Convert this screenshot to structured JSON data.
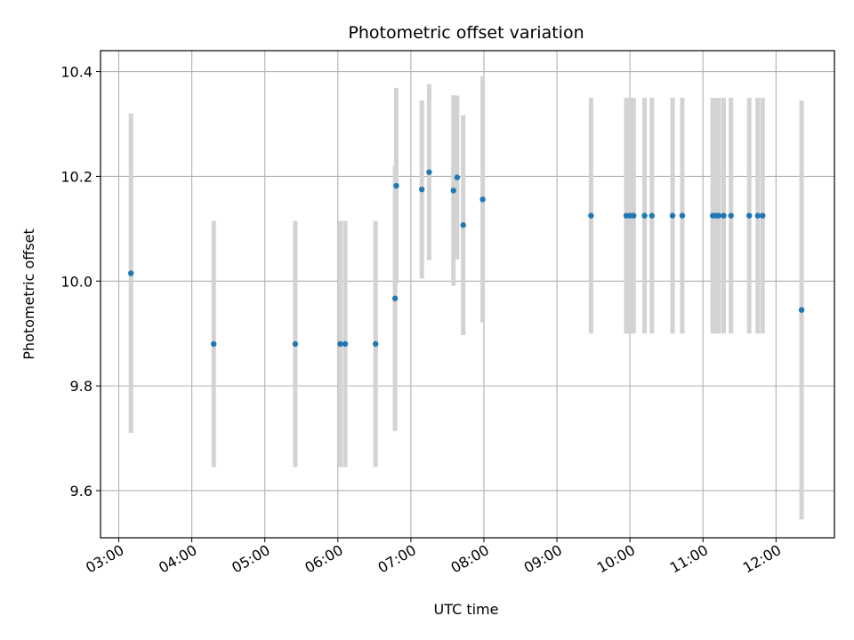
{
  "chart_data": {
    "type": "scatter",
    "title": "Photometric offset variation",
    "xlabel": "UTC time",
    "ylabel": "Photometric offset",
    "x_ticks": [
      "03:00",
      "04:00",
      "05:00",
      "06:00",
      "07:00",
      "08:00",
      "09:00",
      "10:00",
      "11:00",
      "12:00"
    ],
    "y_ticks": [
      "9.6",
      "9.8",
      "10.0",
      "10.2",
      "10.4"
    ],
    "xlim": [
      "02:45",
      "12:48"
    ],
    "ylim": [
      9.51,
      10.44
    ],
    "grid": true,
    "colors": {
      "point": "#1f77b4",
      "errorbar": "#d3d3d3",
      "grid": "#b0b0b0"
    },
    "series": [
      {
        "points": [
          {
            "x": "03:10",
            "y": 10.015,
            "err": 0.305
          },
          {
            "x": "04:18",
            "y": 9.88,
            "err": 0.235
          },
          {
            "x": "05:25",
            "y": 9.88,
            "err": 0.235
          },
          {
            "x": "06:02",
            "y": 9.88,
            "err": 0.235
          },
          {
            "x": "06:06",
            "y": 9.88,
            "err": 0.235
          },
          {
            "x": "06:31",
            "y": 9.88,
            "err": 0.235
          },
          {
            "x": "06:47",
            "y": 9.967,
            "err": 0.253
          },
          {
            "x": "06:48",
            "y": 10.182,
            "err": 0.187
          },
          {
            "x": "07:09",
            "y": 10.175,
            "err": 0.17
          },
          {
            "x": "07:15",
            "y": 10.208,
            "err": 0.168
          },
          {
            "x": "07:35",
            "y": 10.173,
            "err": 0.182
          },
          {
            "x": "07:38",
            "y": 10.198,
            "err": 0.156
          },
          {
            "x": "07:43",
            "y": 10.107,
            "err": 0.21
          },
          {
            "x": "07:59",
            "y": 10.156,
            "err": 0.235
          },
          {
            "x": "09:28",
            "y": 10.125,
            "err": 0.225
          },
          {
            "x": "09:57",
            "y": 10.125,
            "err": 0.225
          },
          {
            "x": "10:00",
            "y": 10.125,
            "err": 0.225
          },
          {
            "x": "10:03",
            "y": 10.125,
            "err": 0.225
          },
          {
            "x": "10:12",
            "y": 10.125,
            "err": 0.225
          },
          {
            "x": "10:18",
            "y": 10.125,
            "err": 0.225
          },
          {
            "x": "10:35",
            "y": 10.125,
            "err": 0.225
          },
          {
            "x": "10:43",
            "y": 10.125,
            "err": 0.225
          },
          {
            "x": "11:08",
            "y": 10.125,
            "err": 0.225
          },
          {
            "x": "11:11",
            "y": 10.125,
            "err": 0.225
          },
          {
            "x": "11:13",
            "y": 10.125,
            "err": 0.225
          },
          {
            "x": "11:17",
            "y": 10.125,
            "err": 0.225
          },
          {
            "x": "11:23",
            "y": 10.125,
            "err": 0.225
          },
          {
            "x": "11:38",
            "y": 10.125,
            "err": 0.225
          },
          {
            "x": "11:45",
            "y": 10.125,
            "err": 0.225
          },
          {
            "x": "11:49",
            "y": 10.125,
            "err": 0.225
          },
          {
            "x": "12:21",
            "y": 9.945,
            "err": 0.4
          }
        ]
      }
    ]
  }
}
